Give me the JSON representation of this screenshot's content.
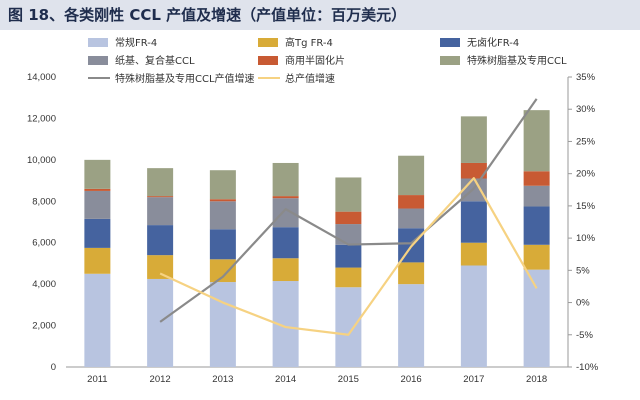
{
  "title": "图 18、各类刚性 CCL 产值及增速（产值单位：百万美元）",
  "chart_data": {
    "type": "bar",
    "stacked": true,
    "categories": [
      "2011",
      "2012",
      "2013",
      "2014",
      "2015",
      "2016",
      "2017",
      "2018"
    ],
    "series": [
      {
        "name": "常规FR-4",
        "color": "#b8c4e0",
        "values": [
          4500,
          4250,
          4100,
          4150,
          3850,
          4000,
          4900,
          4700
        ]
      },
      {
        "name": "高Tg FR-4",
        "color": "#d8ab38",
        "values": [
          1250,
          1150,
          1100,
          1100,
          950,
          1050,
          1100,
          1200
        ]
      },
      {
        "name": "无卤化FR-4",
        "color": "#45639f",
        "values": [
          1400,
          1450,
          1450,
          1500,
          1100,
          1650,
          2000,
          1850
        ]
      },
      {
        "name": "纸基、复合基CCL",
        "color": "#898d9b",
        "values": [
          1350,
          1350,
          1350,
          1400,
          1000,
          950,
          1100,
          1000
        ]
      },
      {
        "name": "商用半固化片",
        "color": "#c85a33",
        "values": [
          100,
          50,
          100,
          100,
          600,
          650,
          750,
          700
        ]
      },
      {
        "name": "特殊树脂基及专用CCL",
        "color": "#9ba184",
        "values": [
          1400,
          1350,
          1400,
          1600,
          1650,
          1900,
          2250,
          2950
        ]
      }
    ],
    "lines": [
      {
        "name": "特殊树脂基及专用CCL产值增速",
        "color": "#8a8a8a",
        "axis": "right",
        "values": [
          null,
          -3.0,
          4.0,
          14.5,
          9.0,
          9.2,
          17.7,
          31.6
        ]
      },
      {
        "name": "总产值增速",
        "color": "#f6d282",
        "axis": "right",
        "values": [
          null,
          4.5,
          0.0,
          -3.8,
          -5.0,
          8.7,
          19.3,
          2.2
        ]
      }
    ],
    "y_left": {
      "min": 0,
      "max": 14000,
      "step": 2000,
      "ticks": [
        "0",
        "2,000",
        "4,000",
        "6,000",
        "8,000",
        "10,000",
        "12,000",
        "14,000"
      ]
    },
    "y_right": {
      "min": -10,
      "max": 35,
      "step": 5,
      "ticks": [
        "-10%",
        "-5%",
        "0%",
        "5%",
        "10%",
        "15%",
        "20%",
        "25%",
        "30%",
        "35%"
      ]
    },
    "legend": {
      "rows": [
        [
          "常规FR-4",
          "高Tg FR-4",
          "无卤化FR-4"
        ],
        [
          "纸基、复合基CCL",
          "商用半固化片",
          "特殊树脂基及专用CCL"
        ],
        [
          "特殊树脂基及专用CCL产值增速",
          "总产值增速"
        ]
      ],
      "placement": "top"
    }
  }
}
